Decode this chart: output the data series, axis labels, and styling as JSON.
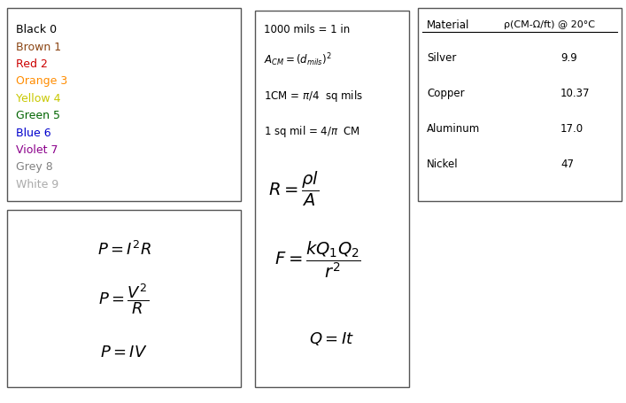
{
  "colors_list": [
    {
      "name": "Black 0",
      "color": "#000000"
    },
    {
      "name": "Brown 1",
      "color": "#8B4513"
    },
    {
      "name": "Red 2",
      "color": "#CC0000"
    },
    {
      "name": "Orange 3",
      "color": "#FF8C00"
    },
    {
      "name": "Yellow 4",
      "color": "#C8C800"
    },
    {
      "name": "Green 5",
      "color": "#006400"
    },
    {
      "name": "Blue 6",
      "color": "#0000CC"
    },
    {
      "name": "Violet 7",
      "color": "#8B008B"
    },
    {
      "name": "Grey 8",
      "color": "#808080"
    },
    {
      "name": "White 9",
      "color": "#aaaaaa"
    }
  ],
  "materials": [
    {
      "name": "Silver",
      "rho": "9.9"
    },
    {
      "name": "Copper",
      "rho": "10.37"
    },
    {
      "name": "Aluminum",
      "rho": "17.0"
    },
    {
      "name": "Nickel",
      "rho": "47"
    }
  ],
  "material_header1": "Material",
  "material_header2": "ρ(CM-Ω/ft) @ 20°C",
  "fig_w": 7.07,
  "fig_h": 4.56,
  "dpi": 100
}
